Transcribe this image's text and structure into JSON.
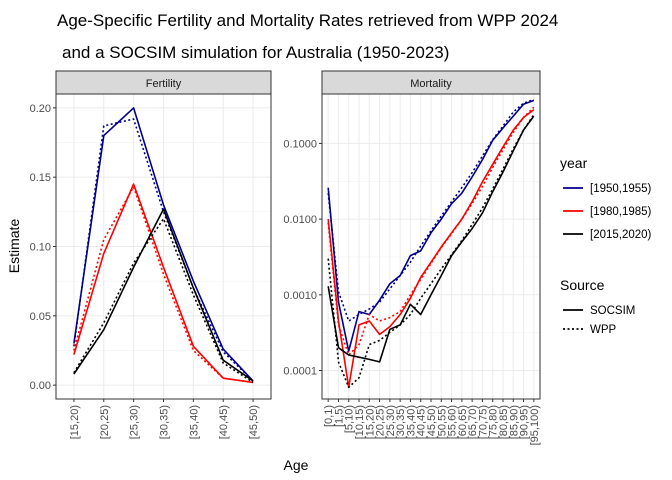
{
  "chart_data": {
    "type": "line",
    "title_line1": "Age-Specific Fertility and Mortality Rates retrieved from WPP 2024",
    "title_line2": "and a SOCSIM simulation for Australia (1950-2023)",
    "xlabel": "Age",
    "ylabel": "Estimate",
    "colors": {
      "[1950,1955)": "#00008B",
      "[1980,1985)": "#FF0000",
      "[2015,2020)": "#000000"
    },
    "legend": {
      "year_title": "year",
      "years": [
        "[1950,1955)",
        "[1980,1985)",
        "[2015,2020)"
      ],
      "source_title": "Source",
      "sources": [
        "SOCSIM",
        "WPP"
      ]
    },
    "panels": [
      {
        "strip": "Fertility",
        "scale": "linear",
        "ylim": [
          -0.01,
          0.21
        ],
        "yticks": [
          0.0,
          0.05,
          0.1,
          0.15,
          0.2
        ],
        "ytick_labels": [
          "0.00",
          "0.05",
          "0.10",
          "0.15",
          "0.20"
        ],
        "categories": [
          "[15,20)",
          "[20,25)",
          "[25,30)",
          "[30,35)",
          "[35,40)",
          "[40,45)",
          "[45,50)"
        ],
        "series": [
          {
            "year": "[1950,1955)",
            "source": "SOCSIM",
            "values": [
              0.03,
              0.18,
              0.2,
              0.13,
              0.075,
              0.026,
              0.003
            ]
          },
          {
            "year": "[1950,1955)",
            "source": "WPP",
            "values": [
              0.028,
              0.187,
              0.192,
              0.125,
              0.07,
              0.024,
              0.003
            ]
          },
          {
            "year": "[1980,1985)",
            "source": "SOCSIM",
            "values": [
              0.022,
              0.095,
              0.145,
              0.085,
              0.028,
              0.005,
              0.002
            ]
          },
          {
            "year": "[1980,1985)",
            "source": "WPP",
            "values": [
              0.025,
              0.105,
              0.143,
              0.08,
              0.025,
              0.005,
              0.002
            ]
          },
          {
            "year": "[2015,2020)",
            "source": "SOCSIM",
            "values": [
              0.008,
              0.04,
              0.085,
              0.127,
              0.07,
              0.018,
              0.003
            ]
          },
          {
            "year": "[2015,2020)",
            "source": "WPP",
            "values": [
              0.009,
              0.045,
              0.088,
              0.12,
              0.065,
              0.016,
              0.002
            ]
          }
        ]
      },
      {
        "strip": "Mortality",
        "scale": "log10",
        "ylim": [
          4.2e-05,
          0.45
        ],
        "yticks": [
          0.0001,
          0.001,
          0.01,
          0.1
        ],
        "ytick_labels": [
          "0.0001",
          "0.0010",
          "0.0100",
          "0.1000"
        ],
        "categories": [
          "[0,1)",
          "[1,5)",
          "[5,10)",
          "[10,15)",
          "[15,20)",
          "[20,25)",
          "[25,30)",
          "[30,35)",
          "[35,40)",
          "[40,45)",
          "[45,50)",
          "[50,55)",
          "[55,60)",
          "[60,65)",
          "[65,70)",
          "[70,75)",
          "[75,80)",
          "[80,85)",
          "[85,90)",
          "[90,95)",
          "[95,100)"
        ],
        "series": [
          {
            "year": "[1950,1955)",
            "source": "SOCSIM",
            "values": [
              0.026,
              0.0008,
              0.00018,
              0.0006,
              0.00055,
              0.00085,
              0.0014,
              0.0018,
              0.0033,
              0.0038,
              0.0066,
              0.01,
              0.016,
              0.022,
              0.036,
              0.061,
              0.11,
              0.16,
              0.23,
              0.33,
              0.37
            ]
          },
          {
            "year": "[1950,1955)",
            "source": "WPP",
            "values": [
              0.022,
              0.0011,
              0.00045,
              0.00055,
              0.00065,
              0.0008,
              0.0012,
              0.0018,
              0.0027,
              0.0044,
              0.007,
              0.011,
              0.017,
              0.026,
              0.041,
              0.068,
              0.112,
              0.17,
              0.26,
              0.34,
              0.38
            ]
          },
          {
            "year": "[1980,1985)",
            "source": "SOCSIM",
            "values": [
              0.01,
              0.00045,
              6e-05,
              0.0004,
              0.00045,
              0.0003,
              0.00038,
              0.00055,
              0.0009,
              0.0017,
              0.0027,
              0.0043,
              0.0066,
              0.01,
              0.017,
              0.031,
              0.053,
              0.09,
              0.15,
              0.22,
              0.28
            ]
          },
          {
            "year": "[1980,1985)",
            "source": "WPP",
            "values": [
              0.009,
              0.0004,
              0.00016,
              0.00022,
              0.00055,
              0.00045,
              0.0005,
              0.0006,
              0.001,
              0.0016,
              0.0026,
              0.0042,
              0.0064,
              0.01,
              0.016,
              0.027,
              0.048,
              0.083,
              0.14,
              0.22,
              0.3
            ]
          },
          {
            "year": "[2015,2020)",
            "source": "SOCSIM",
            "values": [
              0.0013,
              0.0002,
              0.00016,
              0.00015,
              0.00014,
              0.00013,
              0.00035,
              0.0004,
              0.00075,
              0.00055,
              0.001,
              0.0018,
              0.0033,
              0.005,
              0.0075,
              0.012,
              0.023,
              0.042,
              0.08,
              0.15,
              0.23
            ]
          },
          {
            "year": "[2015,2020)",
            "source": "WPP",
            "values": [
              0.003,
              0.00013,
              6e-05,
              8e-05,
              0.00022,
              0.00025,
              0.00032,
              0.0004,
              0.00055,
              0.0009,
              0.0014,
              0.0022,
              0.0034,
              0.0052,
              0.0085,
              0.014,
              0.025,
              0.046,
              0.085,
              0.15,
              0.24
            ]
          }
        ]
      }
    ]
  }
}
